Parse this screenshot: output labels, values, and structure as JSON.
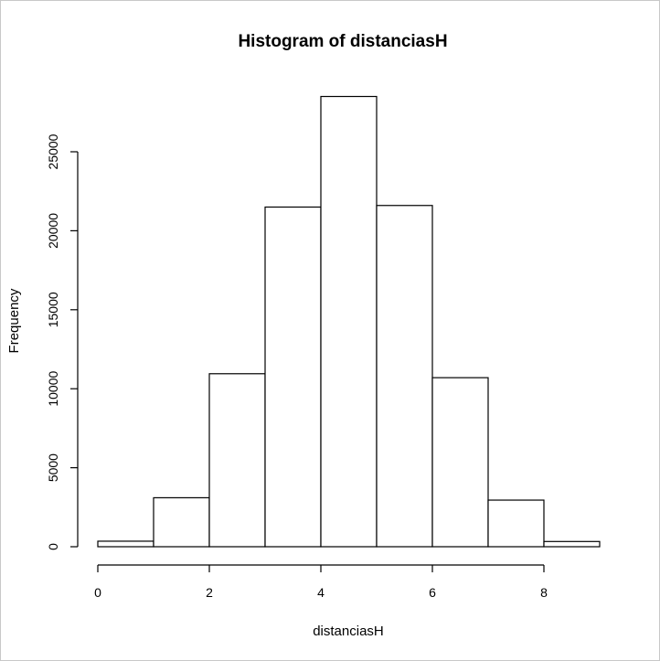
{
  "chart_data": {
    "type": "bar",
    "title": "Histogram of distanciasH",
    "xlabel": "distanciasH",
    "ylabel": "Frequency",
    "bins": [
      [
        0,
        1
      ],
      [
        1,
        2
      ],
      [
        2,
        3
      ],
      [
        3,
        4
      ],
      [
        4,
        5
      ],
      [
        5,
        6
      ],
      [
        6,
        7
      ],
      [
        7,
        8
      ],
      [
        8,
        9
      ]
    ],
    "values": [
      350,
      3100,
      10950,
      21500,
      28500,
      21600,
      10700,
      2950,
      330
    ],
    "xlim": [
      0,
      9
    ],
    "ylim": [
      0,
      28500
    ],
    "x_ticks": [
      0,
      2,
      4,
      6,
      8
    ],
    "y_ticks": [
      0,
      5000,
      10000,
      15000,
      20000,
      25000
    ],
    "grid": false,
    "legend": "none"
  }
}
